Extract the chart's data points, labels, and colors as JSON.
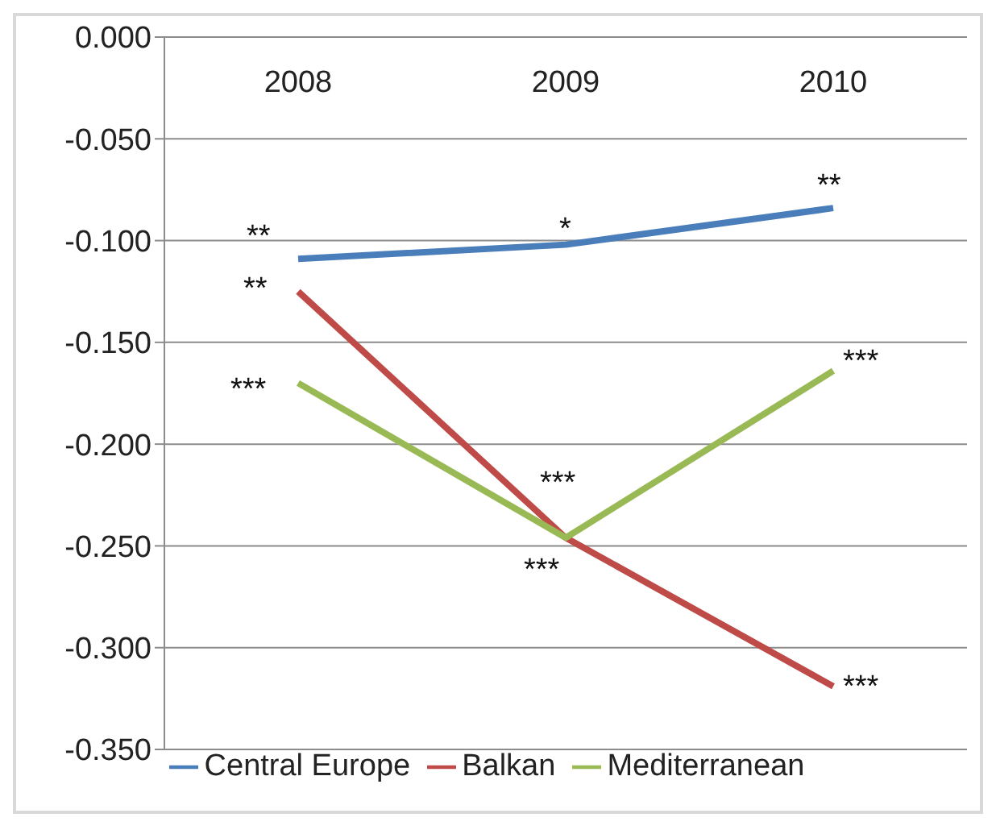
{
  "chart_data": {
    "type": "line",
    "categories": [
      "2008",
      "2009",
      "2010"
    ],
    "series": [
      {
        "name": "Central Europe",
        "color": "#4a7ebb",
        "values": [
          -0.109,
          -0.102,
          -0.084
        ]
      },
      {
        "name": "Balkan",
        "color": "#be4b48",
        "values": [
          -0.125,
          -0.246,
          -0.319
        ]
      },
      {
        "name": "Mediterranean",
        "color": "#98b954",
        "values": [
          -0.17,
          -0.246,
          -0.164
        ]
      }
    ],
    "ylim": [
      -0.35,
      0
    ],
    "yticks": [
      {
        "value": -0.35,
        "label": "-0.350"
      },
      {
        "value": -0.3,
        "label": "-0.300"
      },
      {
        "value": -0.25,
        "label": "-0.250"
      },
      {
        "value": -0.2,
        "label": "-0.200"
      },
      {
        "value": -0.15,
        "label": "-0.150"
      },
      {
        "value": -0.1,
        "label": "-0.100"
      },
      {
        "value": -0.05,
        "label": "-0.050"
      },
      {
        "value": 0,
        "label": "0.000"
      }
    ],
    "grid": "y",
    "legend": "bottom",
    "marker": "none",
    "line_style": "solid",
    "annotations": [
      {
        "text": "**",
        "x": "2008",
        "y": -0.109
      },
      {
        "text": "**",
        "x": "2008",
        "y": -0.125
      },
      {
        "text": "***",
        "x": "2008",
        "y": -0.17
      },
      {
        "text": "*",
        "x": "2009",
        "y": -0.102
      },
      {
        "text": "***",
        "x": "2009",
        "y": -0.246
      },
      {
        "text": "***",
        "x": "2009",
        "y": -0.246
      },
      {
        "text": "**",
        "x": "2010",
        "y": -0.084
      },
      {
        "text": "***",
        "x": "2010",
        "y": -0.164
      },
      {
        "text": "***",
        "x": "2010",
        "y": -0.319
      }
    ]
  }
}
